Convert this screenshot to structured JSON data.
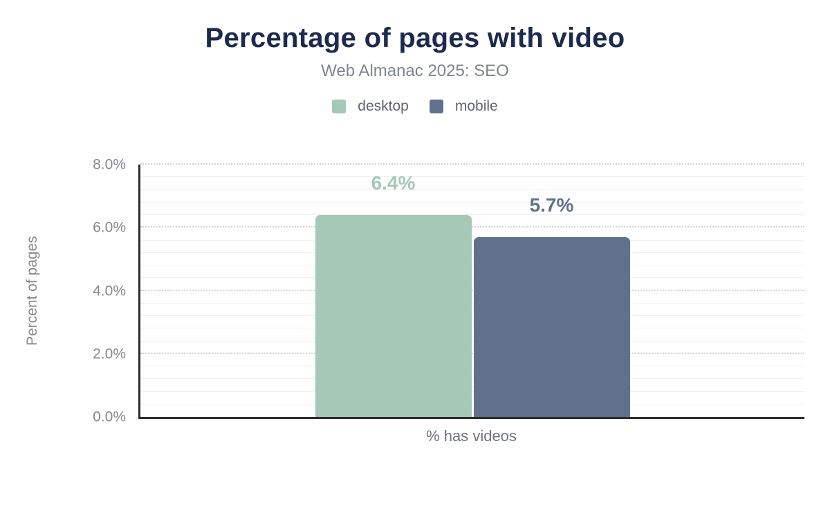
{
  "header": {
    "title": "Percentage of pages with video",
    "subtitle": "Web Almanac 2025: SEO"
  },
  "colors": {
    "title": "#1c2a4d",
    "subtitle_text": "#7f858e",
    "axis_text": "#85898f",
    "axis_line": "#2c2c2c",
    "desktop": "#a5c8b7",
    "mobile": "#5f718d"
  },
  "chart_data": {
    "type": "bar",
    "title": "Percentage of pages with video",
    "subtitle": "Web Almanac 2025: SEO",
    "categories": [
      "% has videos"
    ],
    "series": [
      {
        "name": "desktop",
        "values": [
          6.4
        ],
        "labels": [
          "6.4%"
        ],
        "color": "#a5c8b7"
      },
      {
        "name": "mobile",
        "values": [
          5.7
        ],
        "labels": [
          "5.7%"
        ],
        "color": "#5f718d"
      }
    ],
    "xlabel": "% has videos",
    "ylabel": "Percent of pages",
    "ylim": [
      0,
      8
    ],
    "ytick_step": 2,
    "minor_tick_step": 0.4,
    "ytick_labels": [
      "0.0%",
      "2.0%",
      "4.0%",
      "6.0%",
      "8.0%"
    ],
    "grid": true,
    "legend_position": "top"
  }
}
